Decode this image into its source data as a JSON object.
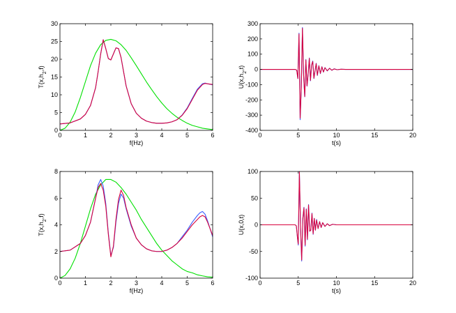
{
  "chart_data": [
    {
      "type": "line",
      "xlabel": "f(Hz)",
      "ylabel": "T(x,h2,f)",
      "xlim": [
        0,
        6
      ],
      "ylim": [
        0,
        30
      ],
      "xticks": [
        0,
        1,
        2,
        3,
        4,
        5,
        6
      ],
      "yticks": [
        0,
        5,
        10,
        15,
        20,
        25,
        30
      ],
      "grid": false,
      "series": [
        {
          "color": "#00e000",
          "x": [
            0,
            0.2,
            0.4,
            0.6,
            0.8,
            1,
            1.2,
            1.4,
            1.6,
            1.8,
            2,
            2.2,
            2.4,
            2.6,
            2.8,
            3,
            3.2,
            3.4,
            3.6,
            3.8,
            4,
            4.2,
            4.4,
            4.6,
            4.8,
            5,
            5.2,
            5.4,
            5.6,
            5.8,
            6
          ],
          "y": [
            0,
            0.6,
            2.3,
            5.2,
            9.2,
            13.7,
            18.2,
            21.7,
            24.1,
            25.3,
            25.6,
            25.2,
            24.1,
            22.5,
            20.4,
            18.2,
            15.9,
            13.6,
            11.5,
            9.5,
            7.7,
            6.1,
            4.8,
            3.7,
            2.8,
            2.0,
            1.4,
            1.0,
            0.6,
            0.4,
            0.2
          ]
        },
        {
          "color": "#3a5cff",
          "x": [
            0,
            0.4,
            0.8,
            1,
            1.2,
            1.4,
            1.5,
            1.6,
            1.7,
            1.8,
            1.9,
            2,
            2.1,
            2.2,
            2.3,
            2.4,
            2.5,
            2.6,
            2.8,
            3,
            3.2,
            3.4,
            3.6,
            3.8,
            4,
            4.2,
            4.4,
            4.6,
            4.8,
            5,
            5.2,
            5.4,
            5.6,
            5.7,
            5.8,
            6
          ],
          "y": [
            1.8,
            2.1,
            3.2,
            4.5,
            7.0,
            12.0,
            16.5,
            21.5,
            25.5,
            23.0,
            20.2,
            19.8,
            21.5,
            23.2,
            23.0,
            20.5,
            16.5,
            12.5,
            7.5,
            4.8,
            3.4,
            2.6,
            2.2,
            2.0,
            2.0,
            2.1,
            2.4,
            3.0,
            4.3,
            6.3,
            9.0,
            11.6,
            13.1,
            13.3,
            13.1,
            12.8
          ]
        },
        {
          "color": "#d8003c",
          "x": [
            0,
            0.4,
            0.8,
            1,
            1.2,
            1.4,
            1.5,
            1.6,
            1.7,
            1.8,
            1.9,
            2,
            2.1,
            2.2,
            2.3,
            2.4,
            2.5,
            2.6,
            2.8,
            3,
            3.2,
            3.4,
            3.6,
            3.8,
            4,
            4.2,
            4.4,
            4.6,
            4.8,
            5,
            5.2,
            5.4,
            5.6,
            5.7,
            5.8,
            6
          ],
          "y": [
            1.8,
            2.1,
            3.2,
            4.5,
            7.0,
            12.0,
            16.5,
            21.5,
            25.5,
            23.0,
            20.2,
            19.8,
            21.5,
            23.2,
            23.0,
            20.5,
            16.5,
            12.5,
            7.5,
            4.8,
            3.4,
            2.6,
            2.2,
            2.0,
            2.0,
            2.1,
            2.4,
            3.0,
            4.2,
            6.1,
            8.7,
            11.3,
            12.9,
            13.2,
            13.1,
            12.9
          ]
        }
      ]
    },
    {
      "type": "line",
      "xlabel": "t(s)",
      "ylabel": "U(x,h2,t)",
      "xlim": [
        0,
        20
      ],
      "ylim": [
        -400,
        300
      ],
      "xticks": [
        0,
        5,
        10,
        15,
        20
      ],
      "yticks": [
        -400,
        -300,
        -200,
        -100,
        0,
        100,
        200,
        300
      ],
      "grid": false,
      "series": [
        {
          "color": "#3a5cff",
          "x": [
            0,
            4.6,
            4.8,
            4.95,
            5.1,
            5.25,
            5.4,
            5.55,
            5.7,
            5.85,
            6.0,
            6.15,
            6.3,
            6.45,
            6.6,
            6.75,
            6.9,
            7.05,
            7.2,
            7.35,
            7.5,
            7.7,
            7.9,
            8.1,
            8.3,
            8.5,
            8.8,
            9.1,
            9.4,
            9.7,
            10.1,
            10.6,
            11.2,
            20
          ],
          "y": [
            0,
            0,
            -5,
            -60,
            238,
            -330,
            -120,
            275,
            -40,
            -180,
            65,
            -110,
            -30,
            75,
            -75,
            30,
            55,
            -60,
            -10,
            40,
            -40,
            25,
            -28,
            18,
            -18,
            12,
            -10,
            8,
            -6,
            4,
            -2,
            1,
            0,
            0
          ]
        },
        {
          "color": "#d8003c",
          "x": [
            0,
            4.6,
            4.8,
            4.95,
            5.1,
            5.25,
            5.4,
            5.55,
            5.7,
            5.85,
            6.0,
            6.15,
            6.3,
            6.45,
            6.6,
            6.75,
            6.9,
            7.05,
            7.2,
            7.35,
            7.5,
            7.7,
            7.9,
            8.1,
            8.3,
            8.5,
            8.8,
            9.1,
            9.4,
            9.7,
            10.1,
            10.6,
            11.2,
            20
          ],
          "y": [
            0,
            0,
            -5,
            -60,
            232,
            -320,
            -115,
            270,
            -38,
            -178,
            62,
            -108,
            -28,
            72,
            -72,
            28,
            52,
            -58,
            -9,
            38,
            -38,
            23,
            -26,
            17,
            -17,
            11,
            -9,
            7,
            -5,
            3,
            -2,
            1,
            0,
            0
          ]
        }
      ]
    },
    {
      "type": "line",
      "xlabel": "f(Hz)",
      "ylabel": "T(x,h2,f)",
      "xlim": [
        0,
        6
      ],
      "ylim": [
        0,
        8
      ],
      "xticks": [
        0,
        1,
        2,
        3,
        4,
        5,
        6
      ],
      "yticks": [
        0,
        2,
        4,
        6,
        8
      ],
      "grid": false,
      "series": [
        {
          "color": "#00e000",
          "x": [
            0,
            0.2,
            0.4,
            0.6,
            0.8,
            1,
            1.2,
            1.4,
            1.6,
            1.8,
            2,
            2.2,
            2.4,
            2.6,
            2.8,
            3,
            3.2,
            3.4,
            3.6,
            3.8,
            4,
            4.2,
            4.4,
            4.6,
            4.8,
            5,
            5.2,
            5.4,
            5.6,
            5.8,
            6
          ],
          "y": [
            0,
            0.2,
            0.7,
            1.5,
            2.6,
            3.9,
            5.2,
            6.3,
            7.0,
            7.4,
            7.4,
            7.2,
            6.8,
            6.3,
            5.7,
            5.1,
            4.4,
            3.8,
            3.2,
            2.6,
            2.1,
            1.7,
            1.3,
            1.0,
            0.7,
            0.5,
            0.4,
            0.25,
            0.17,
            0.1,
            0.07
          ]
        },
        {
          "color": "#3a5cff",
          "x": [
            0,
            0.4,
            0.8,
            1,
            1.2,
            1.4,
            1.5,
            1.6,
            1.7,
            1.8,
            1.9,
            2,
            2.1,
            2.2,
            2.3,
            2.4,
            2.5,
            2.6,
            2.8,
            3,
            3.2,
            3.4,
            3.6,
            3.8,
            4,
            4.2,
            4.4,
            4.6,
            4.8,
            5,
            5.2,
            5.4,
            5.5,
            5.6,
            5.7,
            5.8,
            6
          ],
          "y": [
            2.0,
            2.1,
            2.6,
            3.2,
            4.2,
            6.0,
            7.0,
            7.4,
            6.9,
            5.6,
            3.4,
            1.7,
            2.3,
            4.2,
            5.6,
            6.3,
            6.0,
            5.2,
            3.9,
            3.0,
            2.5,
            2.2,
            2.05,
            2.0,
            2.0,
            2.1,
            2.3,
            2.6,
            3.1,
            3.6,
            4.2,
            4.7,
            4.9,
            5.0,
            4.8,
            4.3,
            3.1
          ]
        },
        {
          "color": "#d8003c",
          "x": [
            0,
            0.4,
            0.8,
            1,
            1.2,
            1.4,
            1.5,
            1.6,
            1.7,
            1.8,
            1.9,
            2,
            2.1,
            2.2,
            2.3,
            2.4,
            2.5,
            2.6,
            2.8,
            3,
            3.2,
            3.4,
            3.6,
            3.8,
            4,
            4.2,
            4.4,
            4.6,
            4.8,
            5,
            5.2,
            5.4,
            5.5,
            5.6,
            5.7,
            5.8,
            6
          ],
          "y": [
            2.0,
            2.1,
            2.6,
            3.2,
            4.2,
            6.0,
            6.8,
            7.1,
            6.6,
            5.4,
            3.3,
            1.6,
            2.4,
            4.4,
            5.9,
            6.6,
            6.2,
            5.3,
            4.0,
            3.0,
            2.5,
            2.2,
            2.05,
            2.0,
            2.0,
            2.1,
            2.3,
            2.6,
            3.0,
            3.5,
            4.0,
            4.4,
            4.6,
            4.7,
            4.6,
            4.2,
            3.2
          ]
        }
      ]
    },
    {
      "type": "line",
      "xlabel": "t(s)",
      "ylabel": "U(x,0,t)",
      "xlim": [
        0,
        20
      ],
      "ylim": [
        -100,
        100
      ],
      "xticks": [
        0,
        5,
        10,
        15,
        20
      ],
      "yticks": [
        -100,
        -50,
        0,
        50,
        100
      ],
      "grid": false,
      "series": [
        {
          "color": "#3a5cff",
          "x": [
            0,
            4.6,
            4.75,
            4.9,
            5.0,
            5.15,
            5.3,
            5.45,
            5.6,
            5.75,
            5.9,
            6.05,
            6.2,
            6.35,
            6.5,
            6.65,
            6.8,
            6.95,
            7.1,
            7.25,
            7.4,
            7.6,
            7.8,
            8.0,
            8.2,
            8.5,
            8.8,
            9.1,
            9.5,
            10,
            20
          ],
          "y": [
            0,
            0,
            -2,
            -25,
            -38,
            100,
            -5,
            -68,
            12,
            33,
            -40,
            30,
            -28,
            38,
            -12,
            -10,
            22,
            -18,
            12,
            -10,
            10,
            -7,
            6,
            -5,
            4,
            -3,
            2,
            -1.5,
            1,
            0,
            0
          ]
        },
        {
          "color": "#d8003c",
          "x": [
            0,
            4.6,
            4.75,
            4.9,
            5.0,
            5.15,
            5.3,
            5.45,
            5.6,
            5.75,
            5.9,
            6.05,
            6.2,
            6.35,
            6.5,
            6.65,
            6.8,
            6.95,
            7.1,
            7.25,
            7.4,
            7.6,
            7.8,
            8.0,
            8.2,
            8.5,
            8.8,
            9.1,
            9.5,
            10,
            20
          ],
          "y": [
            0,
            0,
            -2,
            -24,
            -36,
            100,
            -5,
            -66,
            12,
            32,
            -38,
            29,
            -27,
            37,
            -12,
            -10,
            21,
            -17,
            12,
            -10,
            9,
            -7,
            6,
            -5,
            4,
            -3,
            2,
            -1.5,
            1,
            0,
            0
          ]
        }
      ]
    }
  ]
}
